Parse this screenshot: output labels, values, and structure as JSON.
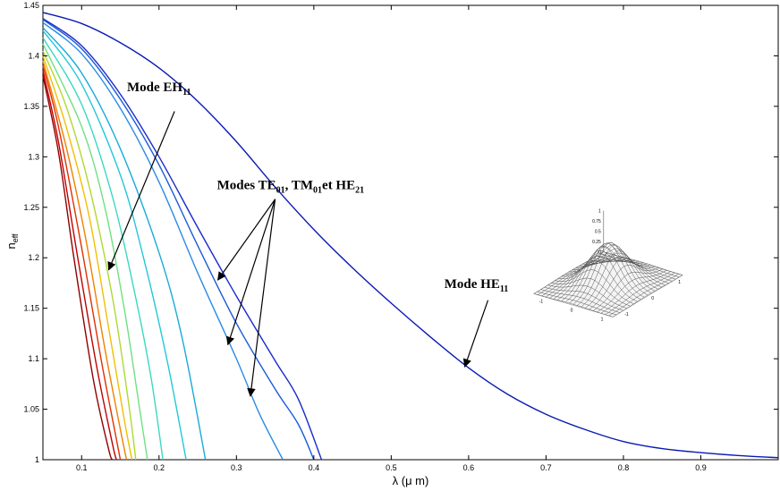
{
  "chart_data": {
    "type": "line",
    "xlabel": "λ (μ m)",
    "ylabel_main": "n",
    "ylabel_sub": "eff",
    "xlim": [
      0.05,
      1.0
    ],
    "ylim": [
      1.0,
      1.45
    ],
    "x_ticks": [
      0.1,
      0.2,
      0.3,
      0.4,
      0.5,
      0.6,
      0.7,
      0.8,
      0.9
    ],
    "x_tick_labels": [
      "0.1",
      "0.2",
      "0.3",
      "0.4",
      "0.5",
      "0.6",
      "0.7",
      "0.8",
      "0.9"
    ],
    "y_ticks": [
      1.0,
      1.05,
      1.1,
      1.15,
      1.2,
      1.25,
      1.3,
      1.35,
      1.4,
      1.45
    ],
    "y_tick_labels": [
      "1",
      "1.05",
      "1.1",
      "1.15",
      "1.2",
      "1.25",
      "1.3",
      "1.35",
      "1.4",
      "1.45"
    ],
    "grid": false,
    "series": [
      {
        "color": "#0a1ab4",
        "points": [
          [
            0.05,
            1.443
          ],
          [
            0.1,
            1.432
          ],
          [
            0.15,
            1.413
          ],
          [
            0.2,
            1.388
          ],
          [
            0.25,
            1.355
          ],
          [
            0.3,
            1.315
          ],
          [
            0.35,
            1.27
          ],
          [
            0.4,
            1.228
          ],
          [
            0.45,
            1.19
          ],
          [
            0.5,
            1.155
          ],
          [
            0.55,
            1.122
          ],
          [
            0.6,
            1.091
          ],
          [
            0.65,
            1.065
          ],
          [
            0.7,
            1.045
          ],
          [
            0.75,
            1.03
          ],
          [
            0.8,
            1.018
          ],
          [
            0.85,
            1.011
          ],
          [
            0.9,
            1.007
          ],
          [
            0.95,
            1.004
          ],
          [
            1.0,
            1.002
          ]
        ]
      },
      {
        "color": "#1a2acc",
        "points": [
          [
            0.05,
            1.437
          ],
          [
            0.1,
            1.41
          ],
          [
            0.15,
            1.362
          ],
          [
            0.2,
            1.3
          ],
          [
            0.25,
            1.23
          ],
          [
            0.3,
            1.162
          ],
          [
            0.35,
            1.098
          ],
          [
            0.38,
            1.06
          ],
          [
            0.41,
            1.0
          ]
        ]
      },
      {
        "color": "#1a5ad8",
        "points": [
          [
            0.05,
            1.436
          ],
          [
            0.1,
            1.407
          ],
          [
            0.15,
            1.357
          ],
          [
            0.2,
            1.292
          ],
          [
            0.25,
            1.212
          ],
          [
            0.3,
            1.135
          ],
          [
            0.35,
            1.07
          ],
          [
            0.38,
            1.035
          ],
          [
            0.4,
            1.0
          ]
        ]
      },
      {
        "color": "#2a8ae6",
        "points": [
          [
            0.05,
            1.433
          ],
          [
            0.1,
            1.402
          ],
          [
            0.15,
            1.348
          ],
          [
            0.2,
            1.275
          ],
          [
            0.25,
            1.185
          ],
          [
            0.3,
            1.1
          ],
          [
            0.33,
            1.045
          ],
          [
            0.36,
            1.0
          ]
        ]
      },
      {
        "color": "#1aaad8",
        "points": [
          [
            0.05,
            1.428
          ],
          [
            0.1,
            1.383
          ],
          [
            0.15,
            1.308
          ],
          [
            0.2,
            1.205
          ],
          [
            0.23,
            1.12
          ],
          [
            0.26,
            1.0
          ]
        ]
      },
      {
        "color": "#22c8d8",
        "points": [
          [
            0.05,
            1.425
          ],
          [
            0.1,
            1.372
          ],
          [
            0.15,
            1.282
          ],
          [
            0.18,
            1.2
          ],
          [
            0.21,
            1.1
          ],
          [
            0.235,
            1.0
          ]
        ]
      },
      {
        "color": "#3ad8c0",
        "points": [
          [
            0.05,
            1.418
          ],
          [
            0.1,
            1.352
          ],
          [
            0.14,
            1.26
          ],
          [
            0.17,
            1.16
          ],
          [
            0.19,
            1.08
          ],
          [
            0.205,
            1.0
          ]
        ]
      },
      {
        "color": "#70e080",
        "points": [
          [
            0.05,
            1.412
          ],
          [
            0.1,
            1.33
          ],
          [
            0.13,
            1.25
          ],
          [
            0.155,
            1.15
          ],
          [
            0.175,
            1.05
          ],
          [
            0.185,
            1.0
          ]
        ]
      },
      {
        "color": "#b0d830",
        "points": [
          [
            0.05,
            1.405
          ],
          [
            0.08,
            1.35
          ],
          [
            0.11,
            1.27
          ],
          [
            0.14,
            1.16
          ],
          [
            0.16,
            1.06
          ],
          [
            0.17,
            1.0
          ]
        ]
      },
      {
        "color": "#f0c000",
        "points": [
          [
            0.05,
            1.4
          ],
          [
            0.08,
            1.33
          ],
          [
            0.11,
            1.24
          ],
          [
            0.135,
            1.13
          ],
          [
            0.155,
            1.04
          ],
          [
            0.165,
            1.0
          ]
        ]
      },
      {
        "color": "#f08000",
        "points": [
          [
            0.05,
            1.395
          ],
          [
            0.08,
            1.31
          ],
          [
            0.105,
            1.22
          ],
          [
            0.13,
            1.11
          ],
          [
            0.15,
            1.03
          ],
          [
            0.158,
            1.0
          ]
        ]
      },
      {
        "color": "#e03000",
        "points": [
          [
            0.05,
            1.39
          ],
          [
            0.07,
            1.33
          ],
          [
            0.1,
            1.21
          ],
          [
            0.125,
            1.1
          ],
          [
            0.145,
            1.02
          ],
          [
            0.15,
            1.0
          ]
        ]
      },
      {
        "color": "#c00000",
        "points": [
          [
            0.05,
            1.385
          ],
          [
            0.07,
            1.315
          ],
          [
            0.095,
            1.2
          ],
          [
            0.12,
            1.09
          ],
          [
            0.14,
            1.015
          ],
          [
            0.145,
            1.0
          ]
        ]
      },
      {
        "color": "#900000",
        "points": [
          [
            0.05,
            1.38
          ],
          [
            0.07,
            1.305
          ],
          [
            0.09,
            1.2
          ],
          [
            0.115,
            1.08
          ],
          [
            0.135,
            1.01
          ],
          [
            0.14,
            1.0
          ]
        ]
      }
    ],
    "annotations": [
      {
        "id": "eh11",
        "main": "Mode EH",
        "sub": "11",
        "text_at": [
          0.2,
          1.365
        ],
        "arrows": [
          [
            [
              0.22,
              1.345
            ],
            [
              0.135,
              1.188
            ]
          ]
        ]
      },
      {
        "id": "te01",
        "parts": [
          [
            "Modes TE",
            "01"
          ],
          [
            ", TM",
            "01"
          ],
          [
            "et HE",
            "21"
          ]
        ],
        "text_at": [
          0.37,
          1.268
        ],
        "arrows": [
          [
            [
              0.35,
              1.258
            ],
            [
              0.276,
              1.178
            ]
          ],
          [
            [
              0.35,
              1.258
            ],
            [
              0.289,
              1.114
            ]
          ],
          [
            [
              0.35,
              1.258
            ],
            [
              0.318,
              1.063
            ]
          ]
        ]
      },
      {
        "id": "he11",
        "main": "Mode HE",
        "sub": "11",
        "text_at": [
          0.61,
          1.17
        ],
        "arrows": [
          [
            [
              0.625,
              1.158
            ],
            [
              0.595,
              1.092
            ]
          ]
        ]
      }
    ],
    "inset": {
      "z_ticks": [
        "1",
        "0.75",
        "0.5",
        "0.25",
        "0"
      ],
      "x_ticks": [
        "-1",
        "0",
        "1"
      ],
      "y_ticks": [
        "1",
        "0",
        "-1"
      ]
    }
  }
}
